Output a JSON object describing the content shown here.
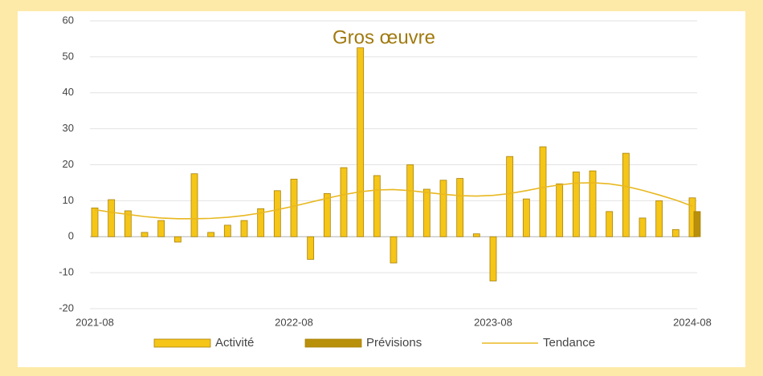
{
  "chart_data": {
    "type": "bar",
    "title": "Gros œuvre",
    "categories": [
      "2021-08",
      null,
      null,
      null,
      null,
      null,
      null,
      null,
      null,
      null,
      null,
      null,
      "2022-08",
      null,
      null,
      null,
      null,
      null,
      null,
      null,
      null,
      null,
      null,
      null,
      "2023-08",
      null,
      null,
      null,
      null,
      null,
      null,
      null,
      null,
      null,
      null,
      null,
      "2024-08"
    ],
    "series": [
      {
        "name": "Activité",
        "type": "bar",
        "color": "#f5c518",
        "values": [
          8,
          10.3,
          7.2,
          1.2,
          4.5,
          -1.5,
          17.5,
          1.2,
          3.2,
          4.5,
          7.8,
          12.8,
          16,
          -6.3,
          12,
          19.2,
          52.5,
          17,
          -7.3,
          20,
          13.2,
          15.7,
          16.2,
          0.8,
          -12.3,
          22.3,
          10.5,
          25,
          14.7,
          18,
          18.3,
          7,
          23.2,
          5.2,
          10,
          2,
          10.8
        ]
      },
      {
        "name": "Prévisions",
        "type": "bar",
        "color": "#b8900a",
        "values": [
          null,
          null,
          null,
          null,
          null,
          null,
          null,
          null,
          null,
          null,
          null,
          null,
          null,
          null,
          null,
          null,
          null,
          null,
          null,
          null,
          null,
          null,
          null,
          null,
          null,
          null,
          null,
          null,
          null,
          null,
          null,
          null,
          null,
          null,
          null,
          null,
          7
        ]
      },
      {
        "name": "Tendance",
        "type": "line",
        "color": "#e8b820",
        "values": [
          7.5,
          6.8,
          6.2,
          5.6,
          5.2,
          5.0,
          5.0,
          5.1,
          5.4,
          5.9,
          6.6,
          7.5,
          8.5,
          9.6,
          10.7,
          11.7,
          12.5,
          13.0,
          13.1,
          12.8,
          12.3,
          11.8,
          11.4,
          11.3,
          11.5,
          12.0,
          12.8,
          13.7,
          14.4,
          14.9,
          15.0,
          14.7,
          14.0,
          12.9,
          11.6,
          10.2,
          8.5
        ]
      }
    ],
    "ylim": [
      -20,
      60
    ],
    "yticks": [
      -20,
      -10,
      0,
      10,
      20,
      30,
      40,
      50,
      60
    ],
    "grid": true,
    "legend": "bottom"
  }
}
